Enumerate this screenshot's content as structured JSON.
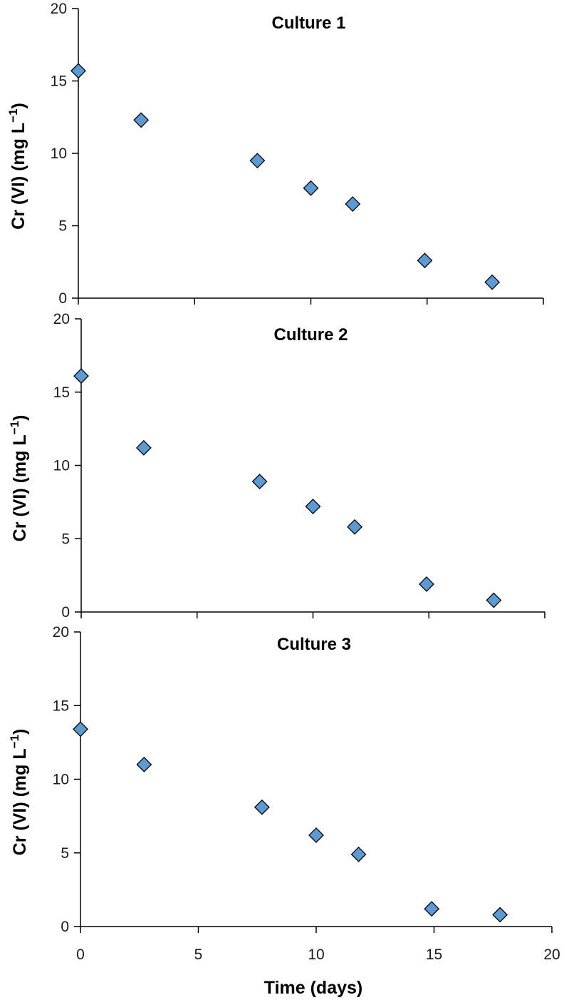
{
  "chart_data": [
    {
      "type": "scatter",
      "title": "Culture 1",
      "ylabel": "Cr (VI) (mg L",
      "ylabel_superscript": "−1",
      "ylabel_close": ")",
      "xlim": [
        0,
        20
      ],
      "ylim": [
        0,
        20
      ],
      "yticks": [
        0,
        5,
        10,
        15,
        20
      ],
      "xticks": [
        0,
        5,
        10,
        15,
        20
      ],
      "show_x_tick_labels": false,
      "grid": false,
      "points": [
        {
          "x": 0,
          "y": 15.7
        },
        {
          "x": 2.7,
          "y": 12.3
        },
        {
          "x": 7.7,
          "y": 9.5
        },
        {
          "x": 10.0,
          "y": 7.6
        },
        {
          "x": 11.8,
          "y": 6.5
        },
        {
          "x": 14.9,
          "y": 2.6
        },
        {
          "x": 17.8,
          "y": 1.1
        }
      ]
    },
    {
      "type": "scatter",
      "title": "Culture 2",
      "ylabel": "Cr (VI) (mg L",
      "ylabel_superscript": "−1",
      "ylabel_close": ")",
      "xlim": [
        0,
        20
      ],
      "ylim": [
        0,
        20
      ],
      "yticks": [
        0,
        5,
        10,
        15,
        20
      ],
      "xticks": [
        0,
        5,
        10,
        15,
        20
      ],
      "show_x_tick_labels": false,
      "grid": false,
      "points": [
        {
          "x": 0,
          "y": 16.1
        },
        {
          "x": 2.7,
          "y": 11.2
        },
        {
          "x": 7.7,
          "y": 8.9
        },
        {
          "x": 10.0,
          "y": 7.2
        },
        {
          "x": 11.8,
          "y": 5.8
        },
        {
          "x": 14.9,
          "y": 1.9
        },
        {
          "x": 17.8,
          "y": 0.8
        }
      ]
    },
    {
      "type": "scatter",
      "title": "Culture 3",
      "ylabel": "Cr (VI) (mg L",
      "ylabel_superscript": "−1",
      "ylabel_close": ")",
      "xlabel": "Time (days)",
      "xlim": [
        0,
        20
      ],
      "ylim": [
        0,
        20
      ],
      "yticks": [
        0,
        5,
        10,
        15,
        20
      ],
      "xticks": [
        0,
        5,
        10,
        15,
        20
      ],
      "show_x_tick_labels": true,
      "grid": false,
      "points": [
        {
          "x": 0,
          "y": 13.4
        },
        {
          "x": 2.7,
          "y": 11.0
        },
        {
          "x": 7.7,
          "y": 8.1
        },
        {
          "x": 10.0,
          "y": 6.2
        },
        {
          "x": 11.8,
          "y": 4.9
        },
        {
          "x": 14.9,
          "y": 1.2
        },
        {
          "x": 17.8,
          "y": 0.8
        }
      ]
    }
  ],
  "colors": {
    "marker_fill": "#5b9bd5",
    "marker_stroke": "#000000"
  }
}
